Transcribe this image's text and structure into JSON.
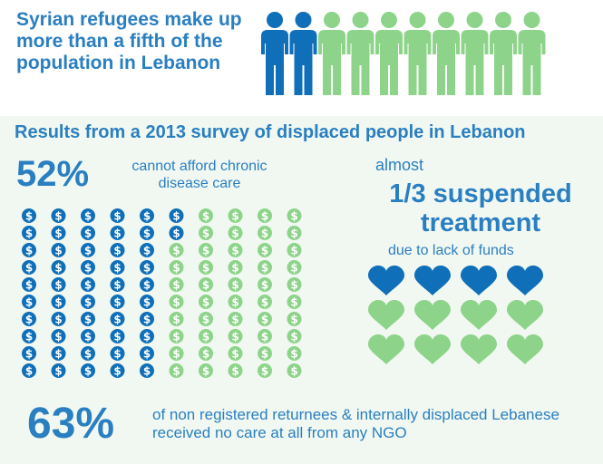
{
  "header": {
    "title": "Syrian refugees make up more than a fifth of the population in Lebanon",
    "people_total": 10,
    "people_highlighted": 2
  },
  "survey": {
    "title": "Results from a 2013 survey of displaced people in Lebanon"
  },
  "chronic": {
    "percent": "52%",
    "text": "cannot afford chronic disease care",
    "coin_total": 100,
    "coin_highlighted": 52
  },
  "treatment": {
    "prefix": "almost",
    "headline": "1/3 suspended treatment",
    "reason": "due to lack of funds",
    "hearts_total": 12,
    "hearts_highlighted": 4
  },
  "ngo": {
    "percent": "63%",
    "text": "of non registered returnees & internally displaced Lebanese received no care at all from any NGO"
  },
  "colors": {
    "blue": "#0f6fb8",
    "green": "#8dd48a",
    "text_blue": "#2a7fc1",
    "panel": "#f1f8f1"
  },
  "icons": {
    "person": "person-icon",
    "coin": "dollar-coin-icon",
    "heart": "heart-icon"
  }
}
